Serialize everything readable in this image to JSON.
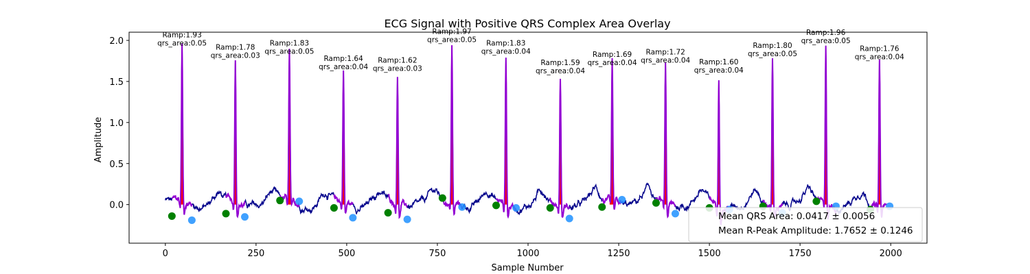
{
  "chart_data": {
    "type": "line",
    "title": "ECG Signal with Positive QRS Complex Area Overlay",
    "xlabel": "Sample Number",
    "ylabel": "Amplitude",
    "xlim": [
      -100,
      2100
    ],
    "ylim": [
      -0.47,
      2.1
    ],
    "xticks": [
      0,
      250,
      500,
      750,
      1000,
      1250,
      1500,
      1750,
      2000
    ],
    "yticks": [
      0.0,
      0.5,
      1.0,
      1.5,
      2.0
    ],
    "xtick_labels": [
      "0",
      "250",
      "500",
      "750",
      "1000",
      "1250",
      "1500",
      "1750",
      "2000"
    ],
    "ytick_labels": [
      "0.0",
      "0.5",
      "1.0",
      "1.5",
      "2.0"
    ],
    "grid": false,
    "colors": {
      "signal": "#00008b",
      "qrs_segment": "#9400d3",
      "qrs_area_fill": "#ff0000",
      "q_point": "#008000",
      "s_point": "#1e90ff"
    },
    "beats": [
      {
        "r_x": 46,
        "ramp": 1.93,
        "qrs_area": 0.05,
        "ramp_label": "Ramp:1.93",
        "area_label": "qrs_area:0.05",
        "q_x": 18,
        "q_y": -0.14,
        "s_x": 73,
        "s_y": -0.19
      },
      {
        "r_x": 193,
        "ramp": 1.78,
        "qrs_area": 0.03,
        "ramp_label": "Ramp:1.78",
        "area_label": "qrs_area:0.03",
        "q_x": 167,
        "q_y": -0.11,
        "s_x": 219,
        "s_y": -0.15
      },
      {
        "r_x": 342,
        "ramp": 1.83,
        "qrs_area": 0.05,
        "ramp_label": "Ramp:1.83",
        "area_label": "qrs_area:0.05",
        "q_x": 316,
        "q_y": 0.05,
        "s_x": 369,
        "s_y": 0.04
      },
      {
        "r_x": 491,
        "ramp": 1.64,
        "qrs_area": 0.04,
        "ramp_label": "Ramp:1.64",
        "area_label": "qrs_area:0.04",
        "q_x": 465,
        "q_y": -0.04,
        "s_x": 517,
        "s_y": -0.16
      },
      {
        "r_x": 640,
        "ramp": 1.62,
        "qrs_area": 0.03,
        "ramp_label": "Ramp:1.62",
        "area_label": "qrs_area:0.03",
        "q_x": 614,
        "q_y": -0.1,
        "s_x": 667,
        "s_y": -0.18
      },
      {
        "r_x": 790,
        "ramp": 1.97,
        "qrs_area": 0.05,
        "ramp_label": "Ramp:1.97",
        "area_label": "qrs_area:0.05",
        "q_x": 764,
        "q_y": 0.08,
        "s_x": 818,
        "s_y": -0.03
      },
      {
        "r_x": 939,
        "ramp": 1.83,
        "qrs_area": 0.04,
        "ramp_label": "Ramp:1.83",
        "area_label": "qrs_area:0.04",
        "q_x": 912,
        "q_y": -0.01,
        "s_x": 967,
        "s_y": -0.04
      },
      {
        "r_x": 1089,
        "ramp": 1.59,
        "qrs_area": 0.04,
        "ramp_label": "Ramp:1.59",
        "area_label": "qrs_area:0.04",
        "q_x": 1061,
        "q_y": -0.04,
        "s_x": 1114,
        "s_y": -0.17
      },
      {
        "r_x": 1232,
        "ramp": 1.69,
        "qrs_area": 0.04,
        "ramp_label": "Ramp:1.69",
        "area_label": "qrs_area:0.04",
        "q_x": 1204,
        "q_y": -0.03,
        "s_x": 1259,
        "s_y": 0.06
      },
      {
        "r_x": 1379,
        "ramp": 1.72,
        "qrs_area": 0.04,
        "ramp_label": "Ramp:1.72",
        "area_label": "qrs_area:0.04",
        "q_x": 1353,
        "q_y": 0.02,
        "s_x": 1406,
        "s_y": -0.11
      },
      {
        "r_x": 1526,
        "ramp": 1.6,
        "qrs_area": 0.04,
        "ramp_label": "Ramp:1.60",
        "area_label": "qrs_area:0.04",
        "q_x": 1500,
        "q_y": -0.04,
        "s_x": 1555,
        "s_y": -0.06
      },
      {
        "r_x": 1674,
        "ramp": 1.8,
        "qrs_area": 0.05,
        "ramp_label": "Ramp:1.80",
        "area_label": "qrs_area:0.05",
        "q_x": 1648,
        "q_y": -0.02,
        "s_x": 1701,
        "s_y": -0.1
      },
      {
        "r_x": 1821,
        "ramp": 1.96,
        "qrs_area": 0.05,
        "ramp_label": "Ramp:1.96",
        "area_label": "qrs_area:0.05",
        "q_x": 1795,
        "q_y": 0.04,
        "s_x": 1849,
        "s_y": -0.02
      },
      {
        "r_x": 1969,
        "ramp": 1.76,
        "qrs_area": 0.04,
        "ramp_label": "Ramp:1.76",
        "area_label": "qrs_area:0.04",
        "q_x": 1944,
        "q_y": -0.06,
        "s_x": 1997,
        "s_y": -0.02
      }
    ],
    "legend": {
      "placement": "lower-right",
      "entries": [
        "Mean QRS Area: 0.0417 ± 0.0056",
        "Mean R-Peak Amplitude: 1.7652 ± 0.1246"
      ]
    }
  }
}
